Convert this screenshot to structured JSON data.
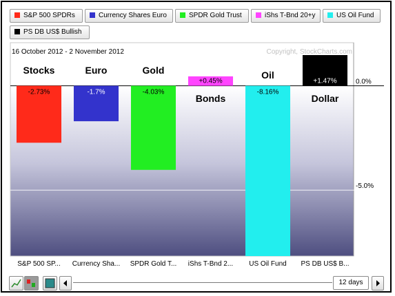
{
  "legend": [
    {
      "label": "S&P 500 SPDRs",
      "color": "#ff2a1a"
    },
    {
      "label": "Currency Shares Euro",
      "color": "#3333cc"
    },
    {
      "label": "SPDR Gold Trust",
      "color": "#22ee22"
    },
    {
      "label": "iShs T-Bnd 20+y",
      "color": "#ff44ff"
    },
    {
      "label": "US Oil Fund",
      "color": "#22eeee"
    },
    {
      "label": "PS DB US$ Bullish",
      "color": "#000000"
    }
  ],
  "date_range": "16 October 2012 - 2 November 2012",
  "copyright": "Copyright, StockCharts.com",
  "period": "12 days",
  "chart_data": {
    "type": "bar",
    "categories": [
      "S&P 500 SP...",
      "Currency Sha...",
      "SPDR Gold T...",
      "iShs T-Bnd 2...",
      "US Oil Fund",
      "PS DB US$ B..."
    ],
    "values": [
      -2.73,
      -1.7,
      -4.03,
      0.45,
      -8.16,
      1.47
    ],
    "value_labels": [
      "-2.73%",
      "-1.7%",
      "-4.03%",
      "+0.45%",
      "-8.16%",
      "+1.47%"
    ],
    "names": [
      "Stocks",
      "Euro",
      "Gold",
      "Bonds",
      "Oil",
      "Dollar"
    ],
    "colors": [
      "#ff2a1a",
      "#3333cc",
      "#22ee22",
      "#ff44ff",
      "#22eeee",
      "#000000"
    ],
    "y_ticks": [
      {
        "value": 0,
        "label": "0.0%"
      },
      {
        "value": -5,
        "label": "-5.0%"
      }
    ],
    "ylim": [
      -8.16,
      1.47
    ],
    "grid": true
  }
}
